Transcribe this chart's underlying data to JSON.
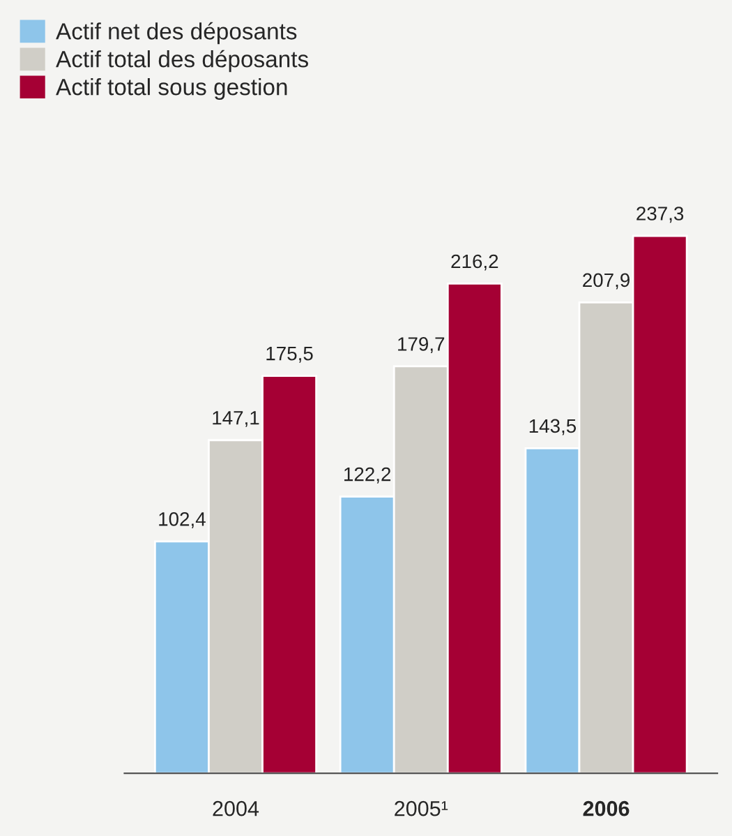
{
  "chart_data": {
    "type": "bar",
    "categories": [
      "2004",
      "2005¹",
      "2006"
    ],
    "series": [
      {
        "name": "Actif net des déposants",
        "color": "#8ec5ea",
        "values": [
          102.4,
          122.2,
          143.5
        ],
        "value_labels": [
          "102,4",
          "122,2",
          "143,5"
        ]
      },
      {
        "name": "Actif total des déposants",
        "color": "#d0cec7",
        "values": [
          147.1,
          179.7,
          207.9
        ],
        "value_labels": [
          "147,1",
          "179,7",
          "207,9"
        ]
      },
      {
        "name": "Actif total sous gestion",
        "color": "#a50034",
        "values": [
          175.5,
          216.2,
          237.3
        ],
        "value_labels": [
          "175,5",
          "216,2",
          "237,3"
        ]
      }
    ],
    "legend": "top left",
    "grid": false
  }
}
